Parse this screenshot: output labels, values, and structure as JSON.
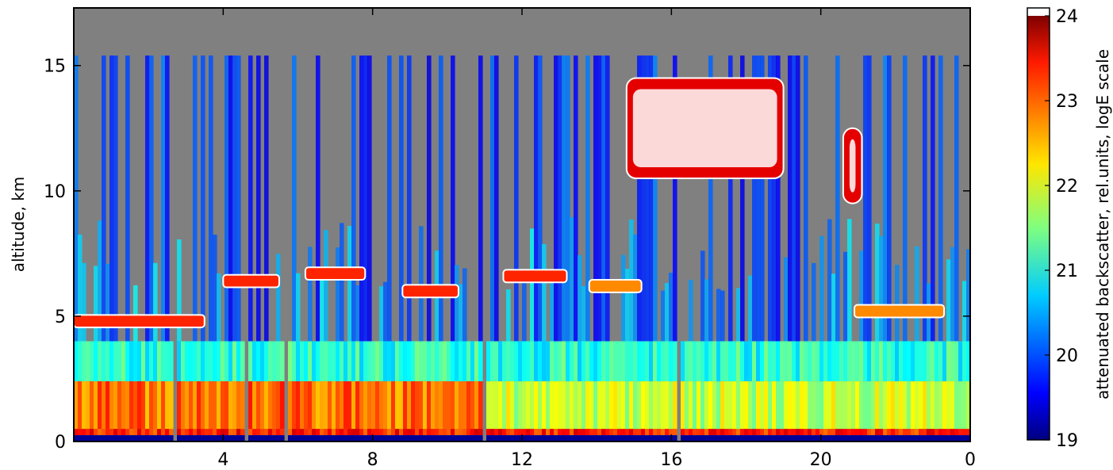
{
  "chart_data": {
    "type": "heatmap",
    "title": "",
    "ylabel": "altitude, km",
    "xlabel": "",
    "x_ticks": [
      "4",
      "8",
      "12",
      "16",
      "20",
      "0"
    ],
    "y_ticks": [
      "0",
      "5",
      "10",
      "15"
    ],
    "xlim": [
      0,
      24
    ],
    "ylim": [
      0,
      17.3
    ],
    "missing_color": "#808080",
    "contour_color": "#ffffff",
    "colorbar": {
      "label": "attenuated backscatter, rel.units, logE scale",
      "ticks": [
        "19",
        "20",
        "21",
        "22",
        "23",
        "24"
      ],
      "range": [
        19,
        24
      ],
      "colormap": "jet",
      "over_color": "#ffffff"
    },
    "boundary_layer_top_km": 4,
    "boundary_layer_value": 22.5,
    "cirrus": [
      {
        "x_start": 14.8,
        "x_end": 19.0,
        "base_km": 10.5,
        "top_km": 14.5,
        "value": 23.5
      },
      {
        "x_start": 20.6,
        "x_end": 21.1,
        "base_km": 9.5,
        "top_km": 12.5,
        "value": 23.5
      }
    ],
    "mid_clouds": [
      {
        "x_start": 0.0,
        "x_end": 3.5,
        "height_km": 4.8,
        "value": 24
      },
      {
        "x_start": 4.0,
        "x_end": 5.5,
        "height_km": 6.4,
        "value": 24
      },
      {
        "x_start": 6.2,
        "x_end": 7.8,
        "height_km": 6.7,
        "value": 24
      },
      {
        "x_start": 8.8,
        "x_end": 10.3,
        "height_km": 6.0,
        "value": 24
      },
      {
        "x_start": 11.5,
        "x_end": 13.2,
        "height_km": 6.6,
        "value": 24
      },
      {
        "x_start": 13.8,
        "x_end": 15.2,
        "height_km": 6.2,
        "value": 23.5
      },
      {
        "x_start": 20.9,
        "x_end": 23.3,
        "height_km": 5.2,
        "value": 23.5
      }
    ]
  }
}
